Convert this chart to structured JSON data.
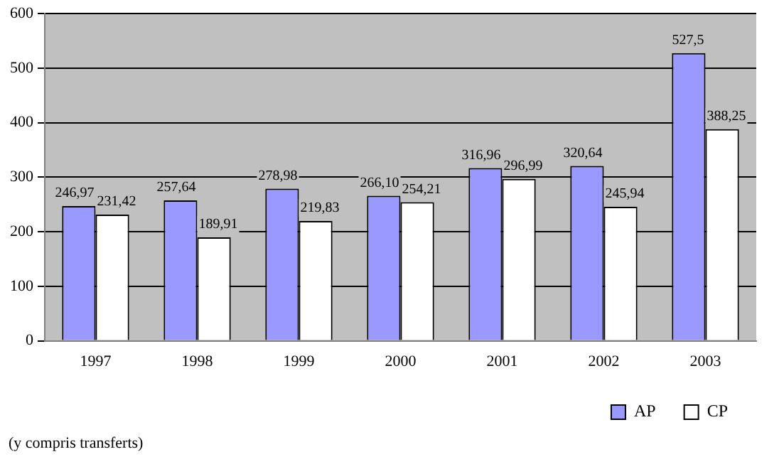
{
  "chart_data": {
    "type": "bar",
    "categories": [
      "1997",
      "1998",
      "1999",
      "2000",
      "2001",
      "2002",
      "2003"
    ],
    "series": [
      {
        "name": "AP",
        "color": "#9999ff",
        "values": [
          246.97,
          257.64,
          278.98,
          266.1,
          316.96,
          320.64,
          527.5
        ],
        "value_labels": [
          "246,97",
          "257,64",
          "278,98",
          "266,10",
          "316,96",
          "320,64",
          "527,5"
        ]
      },
      {
        "name": "CP",
        "color": "#ffffff",
        "values": [
          231.42,
          189.91,
          219.83,
          254.21,
          296.99,
          245.94,
          388.25
        ],
        "value_labels": [
          "231,42",
          "189,91",
          "219,83",
          "254,21",
          "296,99",
          "245,94",
          "388,25"
        ]
      }
    ],
    "ylim": [
      0,
      600
    ],
    "yticks": [
      0,
      100,
      200,
      300,
      400,
      500,
      600
    ],
    "grid": "y",
    "legend": "bottom",
    "annotations": [
      "(y compris transferts)"
    ]
  }
}
